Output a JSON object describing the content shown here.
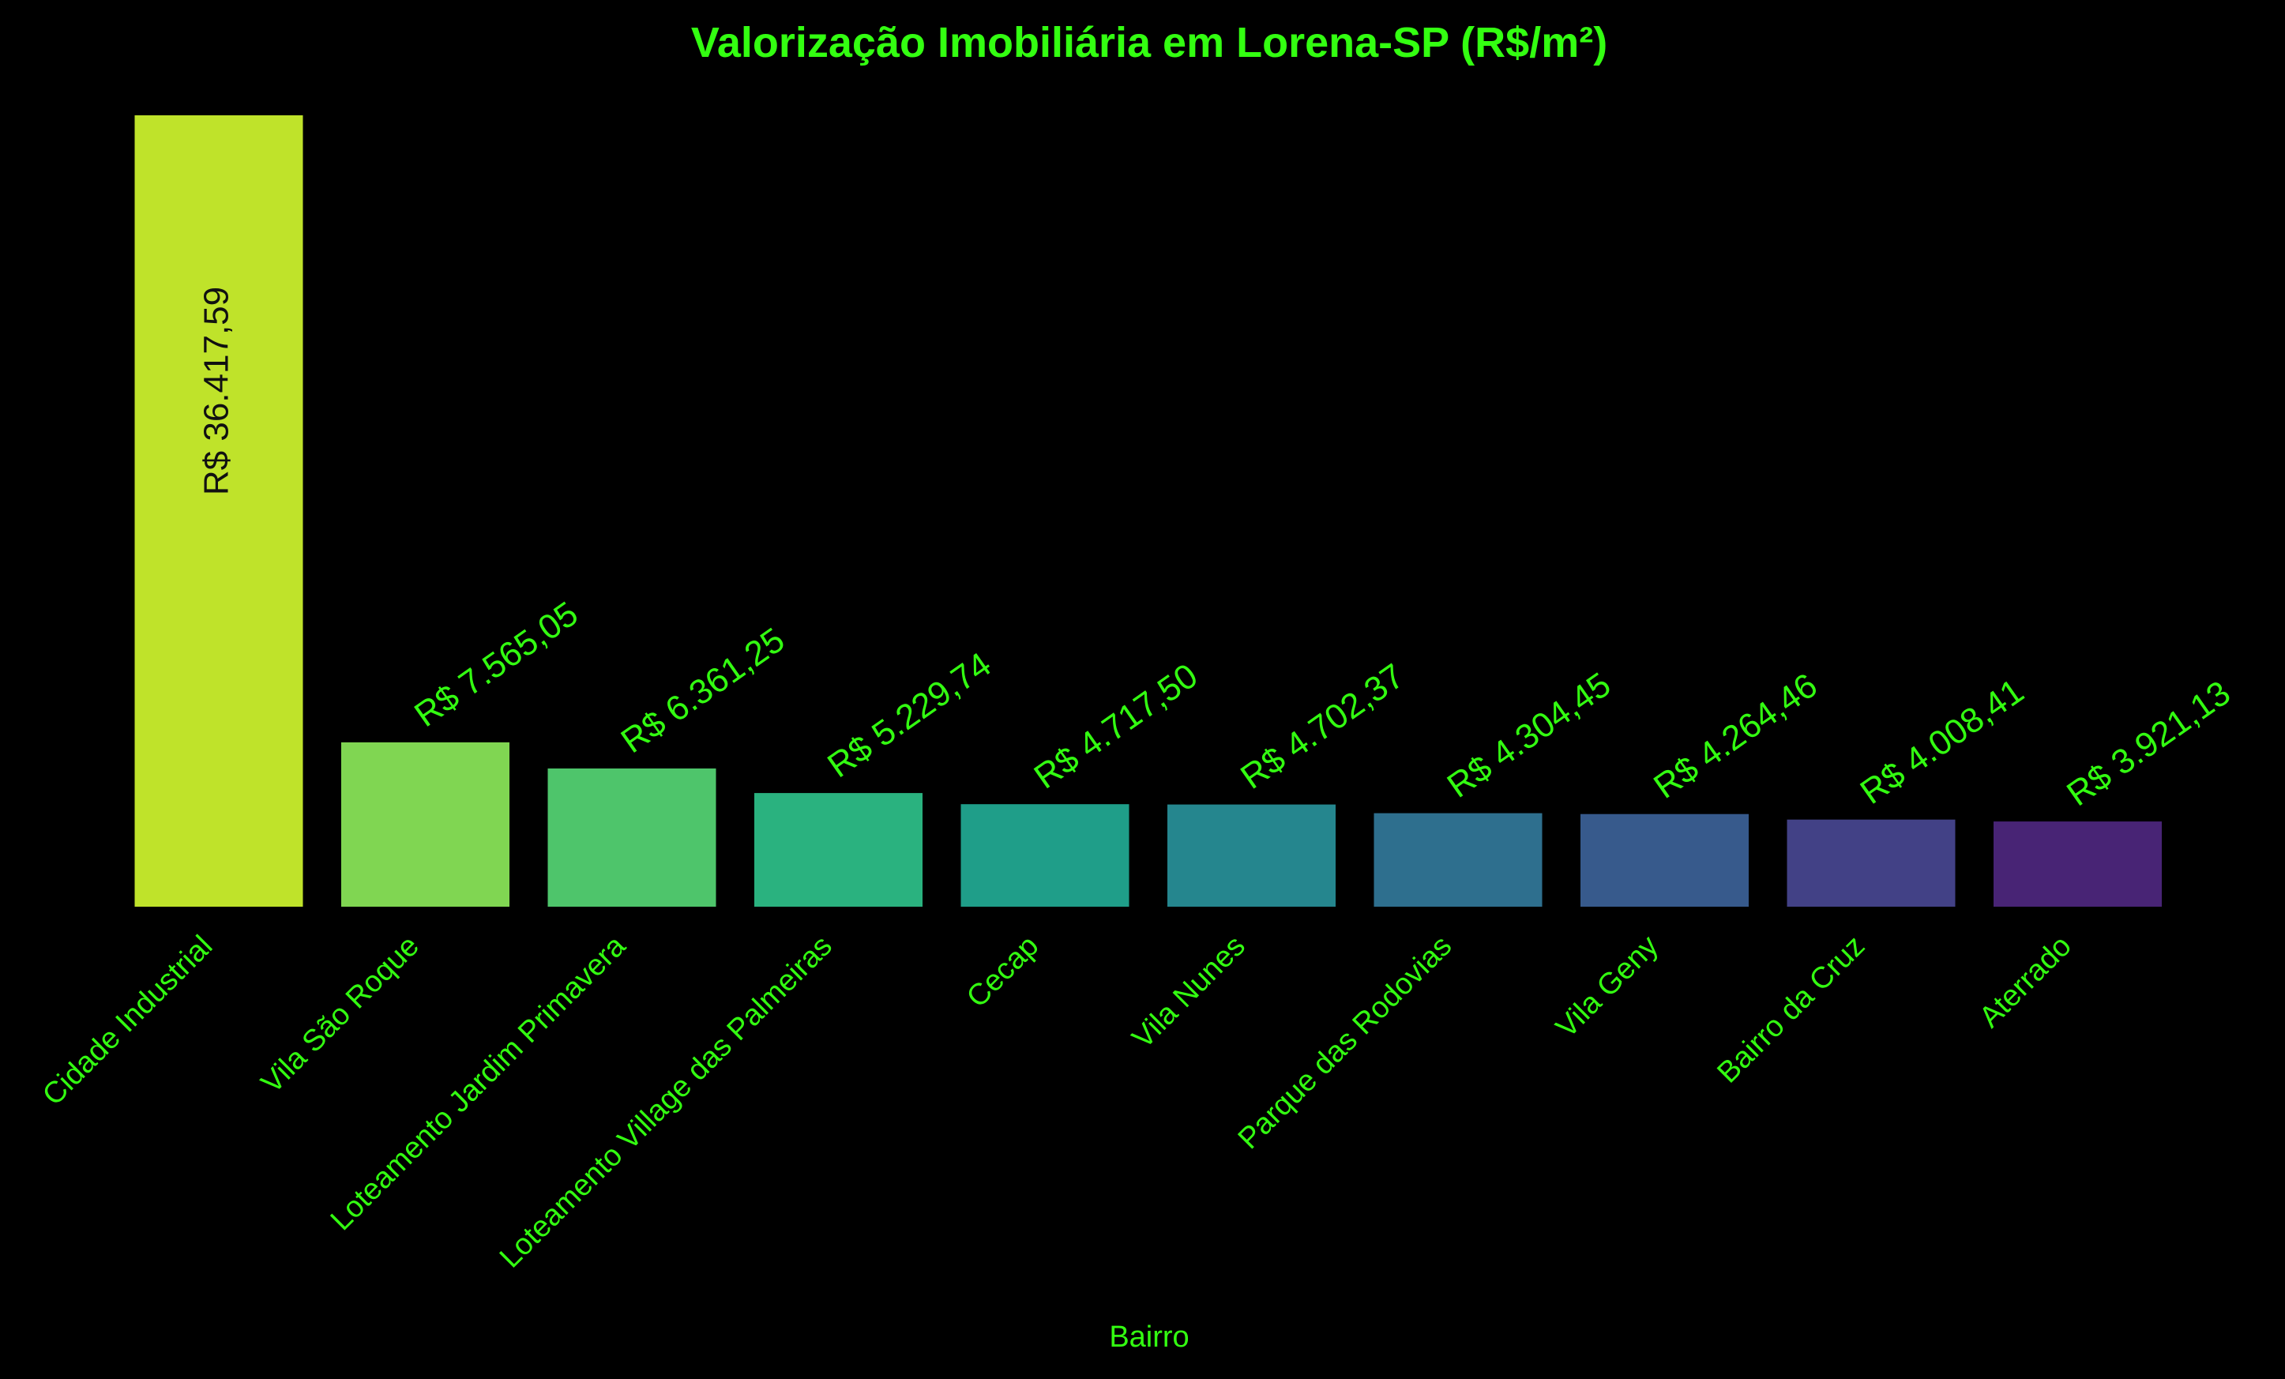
{
  "chart_data": {
    "type": "bar",
    "title": "Valorização Imobiliária em Lorena-SP (R$/m²)",
    "xlabel": "Bairro",
    "ylabel": "",
    "categories": [
      "Cidade Industrial",
      "Vila São Roque",
      "Loteamento Jardim Primavera",
      "Loteamento Village das Palmeiras",
      "Cecap",
      "Vila Nunes",
      "Parque das Rodovias",
      "Vila Geny",
      "Bairro da Cruz",
      "Aterrado"
    ],
    "values": [
      36417.59,
      7565.05,
      6361.25,
      5229.74,
      4717.5,
      4702.37,
      4304.45,
      4264.46,
      4008.41,
      3921.13
    ],
    "value_labels": [
      "R$ 36.417,59",
      "R$ 7.565,05",
      "R$ 6.361,25",
      "R$ 5.229,74",
      "R$ 4.717,50",
      "R$ 4.702,37",
      "R$ 4.304,45",
      "R$ 4.264,46",
      "R$ 4.008,41",
      "R$ 3.921,13"
    ],
    "colors": [
      "#bfe32a",
      "#80d652",
      "#4ec56b",
      "#2ab27f",
      "#1f9e89",
      "#25868e",
      "#2e6f8e",
      "#375a8c",
      "#424186",
      "#482475"
    ],
    "text_color": "#33ff11",
    "inside_label_color": "#111111",
    "background": "#000000",
    "ylim": [
      0,
      36417.59
    ],
    "grid": false,
    "legend": "none"
  }
}
